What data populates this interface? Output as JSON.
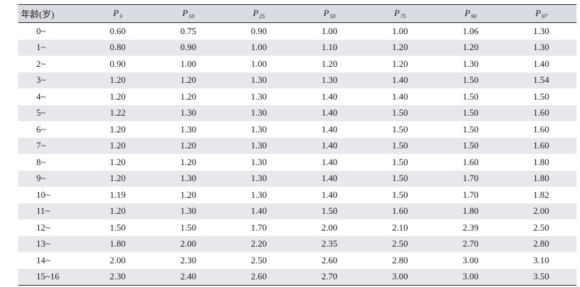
{
  "table": {
    "header": {
      "age": "年龄(岁)",
      "percentiles": [
        {
          "p": "P",
          "sub": "3"
        },
        {
          "p": "P",
          "sub": "10"
        },
        {
          "p": "P",
          "sub": "25"
        },
        {
          "p": "P",
          "sub": "50"
        },
        {
          "p": "P",
          "sub": "75"
        },
        {
          "p": "P",
          "sub": "90"
        },
        {
          "p": "P",
          "sub": "97"
        }
      ]
    },
    "rows": [
      {
        "age": "0~",
        "values": [
          "0.60",
          "0.75",
          "0.90",
          "1.00",
          "1.00",
          "1.06",
          "1.30"
        ]
      },
      {
        "age": "1~",
        "values": [
          "0.80",
          "0.90",
          "1.00",
          "1.10",
          "1.20",
          "1.20",
          "1.30"
        ]
      },
      {
        "age": "2~",
        "values": [
          "0.90",
          "1.00",
          "1.00",
          "1.20",
          "1.20",
          "1.30",
          "1.40"
        ]
      },
      {
        "age": "3~",
        "values": [
          "1.20",
          "1.20",
          "1.30",
          "1.30",
          "1.40",
          "1.50",
          "1.54"
        ]
      },
      {
        "age": "4~",
        "values": [
          "1.20",
          "1.20",
          "1.30",
          "1.40",
          "1.40",
          "1.50",
          "1.50"
        ]
      },
      {
        "age": "5~",
        "values": [
          "1.22",
          "1.30",
          "1.30",
          "1.40",
          "1.50",
          "1.50",
          "1.60"
        ]
      },
      {
        "age": "6~",
        "values": [
          "1.20",
          "1.30",
          "1.30",
          "1.40",
          "1.50",
          "1.50",
          "1.60"
        ]
      },
      {
        "age": "7~",
        "values": [
          "1.20",
          "1.20",
          "1.30",
          "1.40",
          "1.50",
          "1.50",
          "1.60"
        ]
      },
      {
        "age": "8~",
        "values": [
          "1.20",
          "1.20",
          "1.30",
          "1.40",
          "1.50",
          "1.60",
          "1.80"
        ]
      },
      {
        "age": "9~",
        "values": [
          "1.20",
          "1.30",
          "1.30",
          "1.40",
          "1.50",
          "1.70",
          "1.80"
        ]
      },
      {
        "age": "10~",
        "values": [
          "1.19",
          "1.20",
          "1.30",
          "1.40",
          "1.50",
          "1.70",
          "1.82"
        ]
      },
      {
        "age": "11~",
        "values": [
          "1.20",
          "1.30",
          "1.40",
          "1.50",
          "1.60",
          "1.80",
          "2.00"
        ]
      },
      {
        "age": "12~",
        "values": [
          "1.50",
          "1.50",
          "1.70",
          "2.00",
          "2.10",
          "2.39",
          "2.50"
        ]
      },
      {
        "age": "13~",
        "values": [
          "1.80",
          "2.00",
          "2.20",
          "2.35",
          "2.50",
          "2.70",
          "2.80"
        ]
      },
      {
        "age": "14~",
        "values": [
          "2.00",
          "2.30",
          "2.50",
          "2.60",
          "2.80",
          "3.00",
          "3.10"
        ]
      },
      {
        "age": "15~16",
        "values": [
          "2.30",
          "2.40",
          "2.60",
          "2.70",
          "3.00",
          "3.00",
          "3.50"
        ]
      }
    ]
  }
}
